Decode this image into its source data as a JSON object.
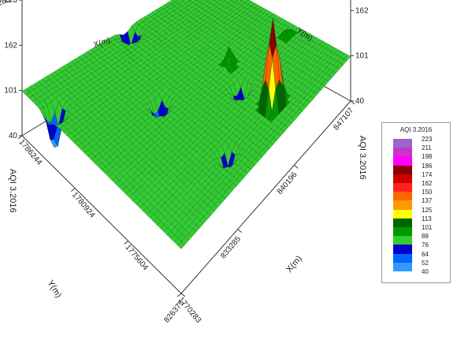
{
  "chart_data": {
    "type": "surface3d",
    "title": "",
    "x_axis": {
      "label": "X(m)",
      "ticks": [
        "826375",
        "833285",
        "840196",
        "847107"
      ]
    },
    "y_axis": {
      "label": "Y(m)",
      "ticks": [
        "1770283",
        "1775604",
        "1780924",
        "1786244"
      ]
    },
    "z_axis": {
      "label": "AQI 3.2016",
      "ticks": [
        "40",
        "101",
        "162",
        "223"
      ],
      "zlim": [
        40,
        223
      ]
    },
    "back_x_ticks": [
      "826375",
      "833285",
      "840196",
      "847107"
    ],
    "back_y_ticks": [
      "1770283",
      "1775604",
      "1780924",
      "1786244"
    ],
    "base_value": 100,
    "features": [
      {
        "kind": "peak",
        "u": 0.85,
        "v": 0.33,
        "height": 223,
        "radius": 0.06
      },
      {
        "kind": "peak",
        "u": 0.52,
        "v": 0.3,
        "height": 130,
        "radius": 0.03
      },
      {
        "kind": "peak",
        "u": 0.62,
        "v": 0.06,
        "height": 112,
        "radius": 0.03
      },
      {
        "kind": "pit",
        "u": 0.44,
        "v": 0.62,
        "depth": 62
      },
      {
        "kind": "pit",
        "u": 0.66,
        "v": 0.35,
        "depth": 60
      },
      {
        "kind": "pit",
        "u": 0.86,
        "v": 0.6,
        "depth": 70
      },
      {
        "kind": "pit",
        "u": 0.16,
        "v": 0.96,
        "depth": 45
      },
      {
        "kind": "pit",
        "u": 0.04,
        "v": 0.45,
        "depth": 60
      }
    ],
    "legend": {
      "title": "AQI 3.2016",
      "placement": "right",
      "levels": [
        "223",
        "211",
        "198",
        "186",
        "174",
        "162",
        "150",
        "137",
        "125",
        "113",
        "101",
        "88",
        "76",
        "64",
        "52",
        "40"
      ],
      "colors": [
        "#9966cc",
        "#cc33cc",
        "#ff00ff",
        "#8b0000",
        "#cc0000",
        "#ff2020",
        "#ff6600",
        "#ff9900",
        "#ffff00",
        "#006600",
        "#009900",
        "#33cc33",
        "#0000cc",
        "#0066ff",
        "#3399ff",
        "#33ccff"
      ]
    }
  }
}
